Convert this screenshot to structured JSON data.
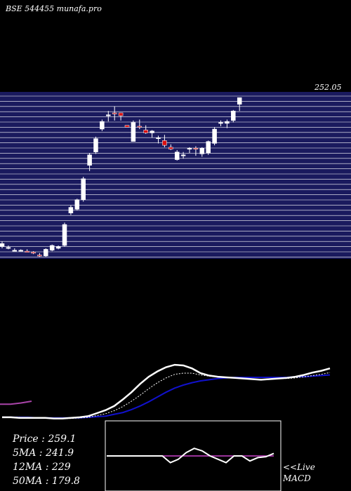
{
  "header": {
    "title": "BSE 544455 munafa.pro"
  },
  "legend": {
    "price": "Price   : 259.1",
    "ma5": "5MA : 241.9",
    "ma12": "12MA : 229",
    "ma50": "50MA : 179.8"
  },
  "macd": {
    "live_label": "<<Live",
    "label": "MACD"
  },
  "colors": {
    "background": "#000000",
    "price_band": "#1a1a5e",
    "gridline": "#ffffff",
    "bull_candle": "#ffffff",
    "bear_candle": "#dd1111",
    "ma_white": "#ffffff",
    "ma_dotted": "#ffffff",
    "ma_blue": "#1111cc",
    "ma_purple": "#aa44aa",
    "macd_signal": "#cc44cc"
  },
  "chart_data": {
    "type": "candlestick",
    "title": "BSE 544455 munafa.pro",
    "y_tick_labels_note": "overlapping price tick labels at right edge are not legible except top value",
    "y_top_label": "252.05",
    "ylim": [
      90,
      265
    ],
    "candles": [
      {
        "o": 103,
        "h": 108,
        "l": 101,
        "c": 106
      },
      {
        "o": 101,
        "h": 104,
        "l": 100,
        "c": 102
      },
      {
        "o": 99,
        "h": 101,
        "l": 98,
        "c": 99
      },
      {
        "o": 99,
        "h": 100,
        "l": 98,
        "c": 99
      },
      {
        "o": 98,
        "h": 100,
        "l": 97,
        "c": 97
      },
      {
        "o": 97,
        "h": 98,
        "l": 95,
        "c": 96
      },
      {
        "o": 94,
        "h": 96,
        "l": 92,
        "c": 93
      },
      {
        "o": 93,
        "h": 101,
        "l": 92,
        "c": 100
      },
      {
        "o": 99,
        "h": 105,
        "l": 98,
        "c": 104
      },
      {
        "o": 101,
        "h": 104,
        "l": 100,
        "c": 103
      },
      {
        "o": 104,
        "h": 128,
        "l": 103,
        "c": 126
      },
      {
        "o": 138,
        "h": 146,
        "l": 136,
        "c": 144
      },
      {
        "o": 142,
        "h": 153,
        "l": 141,
        "c": 152
      },
      {
        "o": 152,
        "h": 176,
        "l": 150,
        "c": 174
      },
      {
        "o": 188,
        "h": 201,
        "l": 182,
        "c": 199
      },
      {
        "o": 202,
        "h": 218,
        "l": 200,
        "c": 216
      },
      {
        "o": 226,
        "h": 236,
        "l": 224,
        "c": 234
      },
      {
        "o": 240,
        "h": 245,
        "l": 234,
        "c": 241
      },
      {
        "o": 243,
        "h": 250,
        "l": 235,
        "c": 242
      },
      {
        "o": 243,
        "h": 243,
        "l": 235,
        "c": 240
      },
      {
        "o": 230,
        "h": 230,
        "l": 228,
        "c": 228
      },
      {
        "o": 213,
        "h": 235,
        "l": 213,
        "c": 233
      },
      {
        "o": 229,
        "h": 236,
        "l": 226,
        "c": 228
      },
      {
        "o": 225,
        "h": 230,
        "l": 221,
        "c": 222
      },
      {
        "o": 222,
        "h": 225,
        "l": 217,
        "c": 224
      },
      {
        "o": 216,
        "h": 219,
        "l": 211,
        "c": 217
      },
      {
        "o": 214,
        "h": 220,
        "l": 207,
        "c": 209
      },
      {
        "o": 207,
        "h": 210,
        "l": 204,
        "c": 205
      },
      {
        "o": 194,
        "h": 204,
        "l": 193,
        "c": 202
      },
      {
        "o": 199,
        "h": 202,
        "l": 195,
        "c": 199
      },
      {
        "o": 205,
        "h": 207,
        "l": 201,
        "c": 206
      },
      {
        "o": 206,
        "h": 208,
        "l": 198,
        "c": 205
      },
      {
        "o": 200,
        "h": 207,
        "l": 197,
        "c": 206
      },
      {
        "o": 201,
        "h": 214,
        "l": 199,
        "c": 213
      },
      {
        "o": 211,
        "h": 228,
        "l": 209,
        "c": 226
      },
      {
        "o": 232,
        "h": 235,
        "l": 229,
        "c": 233
      },
      {
        "o": 232,
        "h": 236,
        "l": 227,
        "c": 234
      },
      {
        "o": 235,
        "h": 246,
        "l": 233,
        "c": 245
      },
      {
        "o": 252,
        "h": 259,
        "l": 245,
        "c": 259
      }
    ],
    "indicators": {
      "ma_white": [
        96,
        96,
        95,
        95,
        95,
        95,
        94,
        94,
        95,
        96,
        98,
        103,
        108,
        115,
        126,
        138,
        152,
        164,
        173,
        180,
        184,
        183,
        178,
        170,
        166,
        164,
        163,
        162,
        161,
        160,
        159,
        160,
        161,
        162,
        164,
        167,
        171,
        174,
        178
      ],
      "ma_dotted": [
        96,
        96,
        96,
        95,
        95,
        95,
        94,
        94,
        94,
        95,
        96,
        99,
        102,
        107,
        114,
        123,
        133,
        144,
        154,
        162,
        168,
        170,
        170,
        167,
        165,
        164,
        163,
        162,
        161,
        160,
        160,
        160,
        161,
        161,
        162,
        164,
        166,
        168,
        171
      ],
      "ma_blue": [
        96,
        96,
        96,
        96,
        95,
        95,
        95,
        95,
        95,
        95,
        96,
        97,
        98,
        101,
        104,
        109,
        115,
        122,
        130,
        138,
        145,
        150,
        154,
        157,
        159,
        161,
        162,
        163,
        163,
        163,
        163,
        163,
        163,
        163,
        164,
        164,
        165,
        166,
        167
      ],
      "ma_purple_segment": [
        118,
        118,
        120,
        123
      ]
    },
    "macd": {
      "zero_line": 0,
      "signal": [
        0,
        0,
        0,
        0,
        0,
        0,
        0,
        0,
        0,
        0,
        0,
        0,
        0,
        0,
        0,
        0,
        0,
        0,
        0,
        0
      ],
      "macd": [
        0,
        0,
        0,
        0,
        0,
        0,
        0,
        0,
        -0.8,
        -0.4,
        0.4,
        0.9,
        0.6,
        0,
        -0.4,
        -0.8,
        0,
        0,
        -0.6,
        -0.2,
        -0.1,
        0.3
      ]
    }
  }
}
